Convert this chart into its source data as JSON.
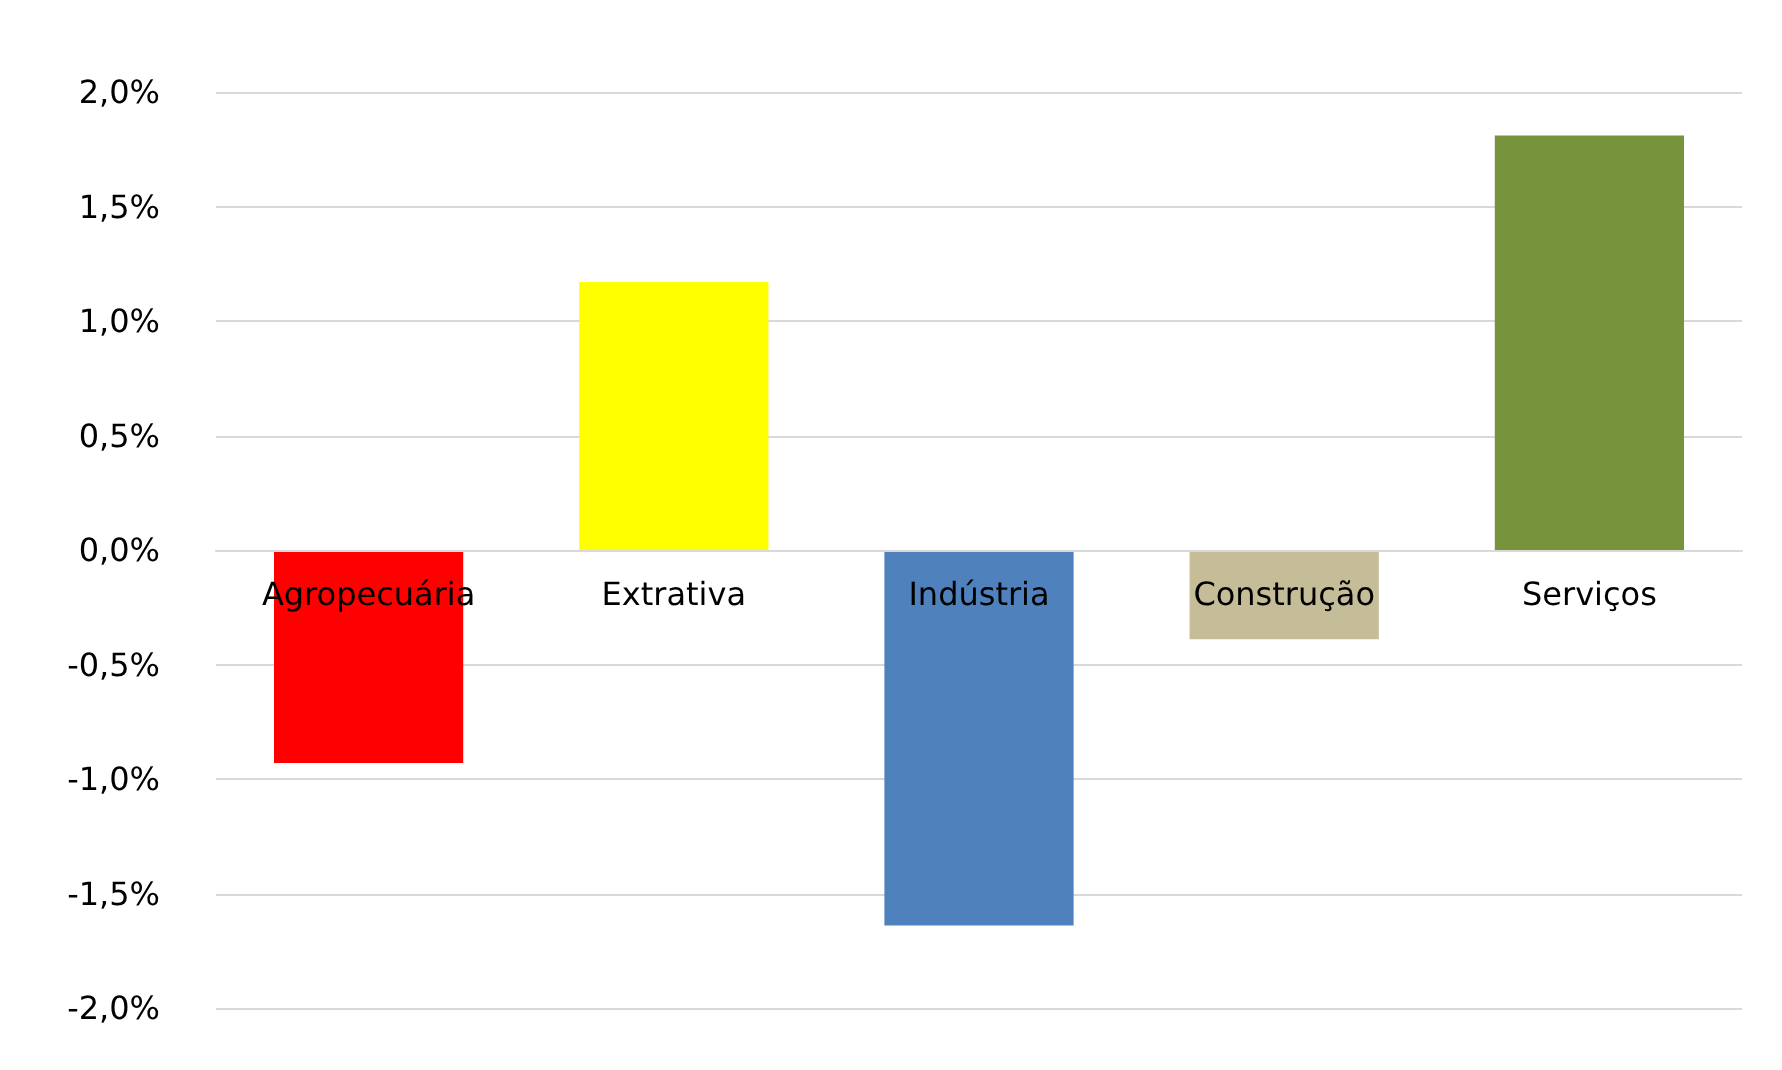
{
  "chart_data": {
    "type": "bar",
    "categories": [
      "Agropecuária",
      "Extrativa",
      "Indústria",
      "Construção",
      "Serviços"
    ],
    "values": [
      -0.93,
      1.17,
      -1.64,
      -0.39,
      1.81
    ],
    "colors": [
      "#ff0000",
      "#ffff00",
      "#4f81bd",
      "#c4bd97",
      "#77933c"
    ],
    "ylim": [
      -2,
      2
    ],
    "yticks": [
      {
        "value": -2,
        "label": "-2,0%"
      },
      {
        "value": -1.5,
        "label": "-1,5%"
      },
      {
        "value": -1,
        "label": "-1,0%"
      },
      {
        "value": -0.5,
        "label": "-0,5%"
      },
      {
        "value": 0,
        "label": "0,0%"
      },
      {
        "value": 0.5,
        "label": "0,5%"
      },
      {
        "value": 1,
        "label": "1,0%"
      },
      {
        "value": 1.5,
        "label": "1,5%"
      },
      {
        "value": 2,
        "label": "2,0%"
      }
    ],
    "grid": "y"
  }
}
